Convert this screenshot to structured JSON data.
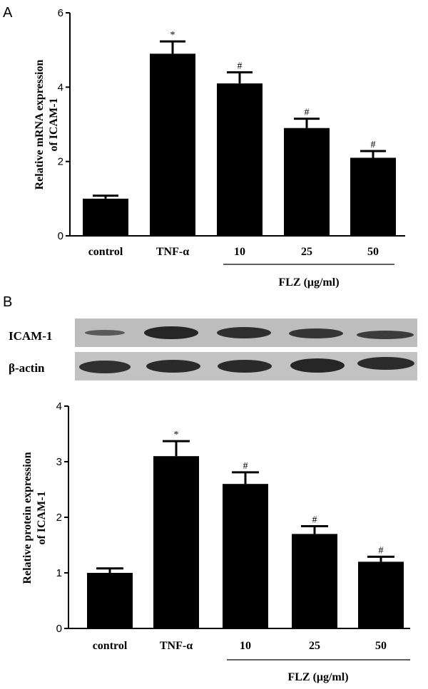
{
  "chart_data": [
    {
      "panel_label": "A",
      "type": "bar",
      "ylabel_line1": "Relative mRNA expression",
      "ylabel_line2": "of ICAM-1",
      "ylim": [
        0,
        6
      ],
      "yticks": [
        "0",
        "2",
        "4",
        "6"
      ],
      "categories": [
        "control",
        "TNF-α",
        "10",
        "25",
        "50"
      ],
      "values": [
        1.0,
        4.9,
        4.1,
        2.9,
        2.1
      ],
      "errors": [
        0.08,
        0.33,
        0.3,
        0.25,
        0.18
      ],
      "annotations": [
        "",
        "*",
        "#",
        "#",
        "#"
      ],
      "group_label": "FLZ (μg/ml)"
    },
    {
      "panel_label": "B",
      "type": "bar",
      "blot_labels": [
        "ICAM-1",
        "β-actin"
      ],
      "ylabel_line1": "Relative protein expression",
      "ylabel_line2": "of ICAM-1",
      "ylim": [
        0,
        4
      ],
      "yticks": [
        "0",
        "1",
        "2",
        "3",
        "4"
      ],
      "categories": [
        "control",
        "TNF-α",
        "10",
        "25",
        "50"
      ],
      "values": [
        1.0,
        3.1,
        2.6,
        1.7,
        1.2
      ],
      "errors": [
        0.08,
        0.27,
        0.21,
        0.14,
        0.09
      ],
      "annotations": [
        "",
        "*",
        "#",
        "#",
        "#"
      ],
      "group_label": "FLZ (μg/ml)"
    }
  ]
}
